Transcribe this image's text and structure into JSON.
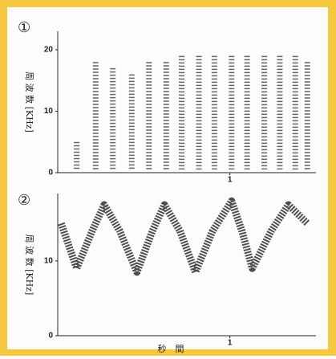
{
  "chart_data": [
    {
      "type": "pulse",
      "label": "①",
      "ylabel": "周 波 数 [KHz]",
      "xlim": [
        0,
        1.5
      ],
      "ylim": [
        0,
        23
      ],
      "xticks": [
        1
      ],
      "yticks": [
        0,
        10,
        20
      ],
      "color": "#333333",
      "x": [
        0.11,
        0.22,
        0.32,
        0.43,
        0.53,
        0.63,
        0.72,
        0.82,
        0.91,
        1.01,
        1.1,
        1.2,
        1.29,
        1.38,
        1.45
      ],
      "values": [
        5,
        18,
        17,
        16,
        18,
        18,
        19,
        19,
        19,
        19,
        19,
        19,
        19,
        19,
        18
      ]
    },
    {
      "type": "line",
      "label": "②",
      "ylabel": "周 波 数 [KHz]",
      "xlabel": "秒　間",
      "xlim": [
        0,
        1.5
      ],
      "ylim": [
        0,
        19
      ],
      "xticks": [
        1
      ],
      "yticks": [
        0,
        10
      ],
      "color": "#222222",
      "x": [
        0.02,
        0.11,
        0.2,
        0.27,
        0.36,
        0.46,
        0.55,
        0.62,
        0.71,
        0.8,
        0.9,
        1.01,
        1.07,
        1.13,
        1.24,
        1.34,
        1.45
      ],
      "values": [
        15,
        9,
        14,
        17.5,
        14,
        8.5,
        14,
        17.5,
        14,
        8.5,
        14,
        18,
        14,
        9,
        14,
        17.5,
        15
      ]
    }
  ]
}
